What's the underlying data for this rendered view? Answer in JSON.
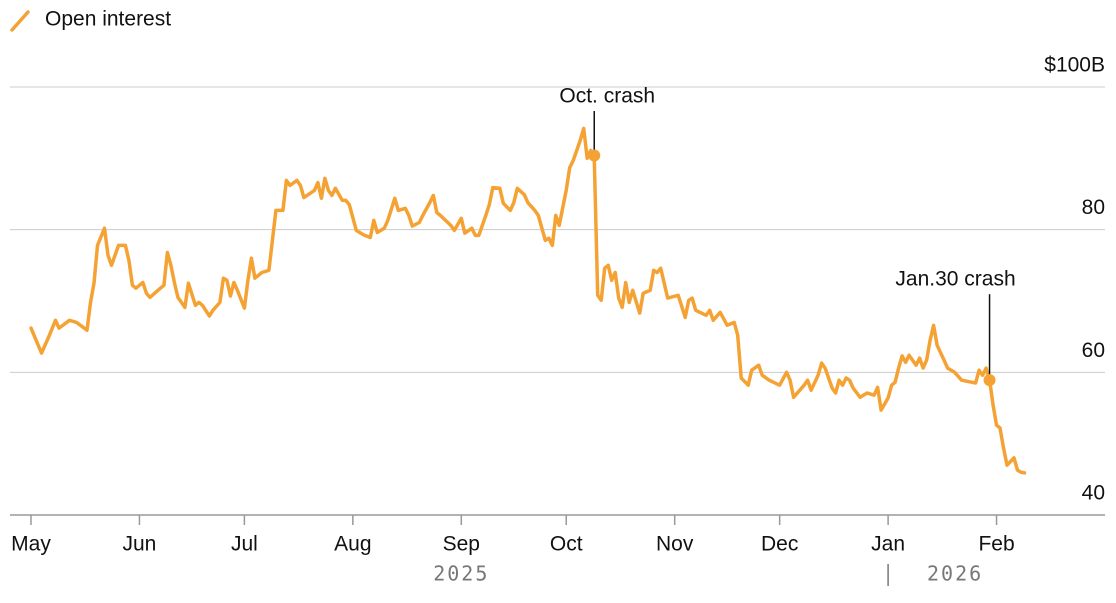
{
  "chart_data": {
    "type": "line",
    "x": [
      0,
      3,
      5,
      7,
      8,
      11,
      13,
      16,
      17,
      18,
      19,
      21,
      22,
      23,
      24,
      25,
      27,
      28,
      29,
      30,
      32,
      33,
      34,
      37,
      38,
      39,
      40,
      41,
      42,
      44,
      45,
      47,
      48,
      49,
      51,
      52,
      54,
      55,
      56,
      57,
      58,
      59,
      61,
      62,
      63,
      64,
      66,
      68,
      69,
      70,
      72,
      73,
      74,
      76,
      77,
      78,
      81,
      82,
      83,
      84,
      85,
      86,
      87,
      89,
      90,
      91,
      93,
      95,
      97,
      98,
      99,
      101,
      102,
      104,
      105,
      107,
      108,
      109,
      111,
      112,
      114,
      115,
      116,
      117,
      120,
      121,
      123,
      124,
      126,
      127,
      128,
      130,
      131,
      132,
      134,
      135,
      137,
      138,
      139,
      141,
      142,
      144,
      145,
      147,
      148,
      149,
      150,
      151,
      153,
      154,
      155,
      157,
      158,
      159,
      160,
      161,
      162,
      163,
      164,
      165,
      166,
      167,
      168,
      169,
      170,
      171,
      172,
      174,
      175,
      177,
      178,
      179,
      180,
      181,
      182,
      185,
      187,
      188,
      189,
      190,
      193,
      194,
      195,
      197,
      199,
      201,
      202,
      203,
      205,
      206,
      208,
      209,
      211,
      214,
      216,
      217,
      218,
      221,
      222,
      223,
      225,
      226,
      227,
      229,
      230,
      231,
      232,
      233,
      234,
      235,
      237,
      239,
      241,
      242,
      243,
      245,
      246,
      247,
      248,
      249,
      250,
      251,
      253,
      254,
      255,
      256,
      257,
      258,
      259,
      261,
      262,
      264,
      266,
      269,
      270,
      271,
      272,
      273,
      274,
      275,
      276,
      277,
      278,
      279,
      281,
      282,
      283,
      284
    ],
    "series": [
      {
        "name": "Open interest",
        "color": "#f5a235",
        "values": [
          66.2,
          62.7,
          64.9,
          67.3,
          66.2,
          67.3,
          67.0,
          65.9,
          69.8,
          72.5,
          77.8,
          80.2,
          76.4,
          75.0,
          76.4,
          77.8,
          77.8,
          75.7,
          72.2,
          71.8,
          72.6,
          71.1,
          70.5,
          71.8,
          72.2,
          76.8,
          75.0,
          72.6,
          70.5,
          69.1,
          72.5,
          69.4,
          69.8,
          69.4,
          67.9,
          68.7,
          69.8,
          73.2,
          72.9,
          70.7,
          72.6,
          71.5,
          69.0,
          72.9,
          76.0,
          73.2,
          74.0,
          74.3,
          78.5,
          82.7,
          82.7,
          86.9,
          86.2,
          86.9,
          86.2,
          84.5,
          85.5,
          86.6,
          84.4,
          87.2,
          85.5,
          84.8,
          85.8,
          84.1,
          84.1,
          83.5,
          79.9,
          79.3,
          78.9,
          81.3,
          79.6,
          80.2,
          81.3,
          84.4,
          82.7,
          83.0,
          82.0,
          80.5,
          81.0,
          82.0,
          83.8,
          84.8,
          82.4,
          82.0,
          80.6,
          79.9,
          81.6,
          79.5,
          80.2,
          79.2,
          79.2,
          82.0,
          83.5,
          85.9,
          85.8,
          83.7,
          82.7,
          83.8,
          85.8,
          84.9,
          83.8,
          82.7,
          82.0,
          78.5,
          78.8,
          77.8,
          82.0,
          80.6,
          85.5,
          88.7,
          89.7,
          92.5,
          94.2,
          90.0,
          91.1,
          90.4,
          70.8,
          70.1,
          74.6,
          75.0,
          72.9,
          74.0,
          70.4,
          69.1,
          72.6,
          69.8,
          71.5,
          68.3,
          71.1,
          71.5,
          74.3,
          74.0,
          74.6,
          72.5,
          70.4,
          70.8,
          67.7,
          70.1,
          70.4,
          68.7,
          68.0,
          68.7,
          67.3,
          68.4,
          66.6,
          67.0,
          65.2,
          59.2,
          58.2,
          60.3,
          61.0,
          59.6,
          58.9,
          58.2,
          60.0,
          58.9,
          56.5,
          58.2,
          58.9,
          57.5,
          59.6,
          61.3,
          60.6,
          57.8,
          57.1,
          58.9,
          58.2,
          59.2,
          58.9,
          57.8,
          56.5,
          57.1,
          56.8,
          57.9,
          54.7,
          56.4,
          58.2,
          58.6,
          60.6,
          62.3,
          61.4,
          62.4,
          61.0,
          62.0,
          60.6,
          61.7,
          64.5,
          66.6,
          63.8,
          61.7,
          60.6,
          60.0,
          58.9,
          58.6,
          58.5,
          60.3,
          59.6,
          60.6,
          58.9,
          55.4,
          52.6,
          52.2,
          49.4,
          47.0,
          48.0,
          46.3,
          46.0,
          45.9
        ]
      }
    ],
    "xlim": [
      -6,
      307
    ],
    "xticks": [
      {
        "value": 0,
        "label": "May"
      },
      {
        "value": 31,
        "label": "Jun"
      },
      {
        "value": 61,
        "label": "Jul"
      },
      {
        "value": 92,
        "label": "Aug"
      },
      {
        "value": 123,
        "label": "Sep"
      },
      {
        "value": 153,
        "label": "Oct"
      },
      {
        "value": 184,
        "label": "Nov"
      },
      {
        "value": 214,
        "label": "Dec"
      },
      {
        "value": 245,
        "label": "Jan"
      },
      {
        "value": 276,
        "label": "Feb"
      }
    ],
    "years": [
      "2025",
      "2026"
    ],
    "ylim": [
      40,
      100
    ],
    "yticks": [
      40,
      60,
      80,
      {
        "value": 100,
        "label": "$100B"
      }
    ],
    "grid": true,
    "annotations": [
      {
        "label": "Oct. crash",
        "x": 161,
        "y": 90.4
      },
      {
        "label": "Jan.30 crash",
        "x": 274,
        "y": 58.9
      }
    ]
  }
}
